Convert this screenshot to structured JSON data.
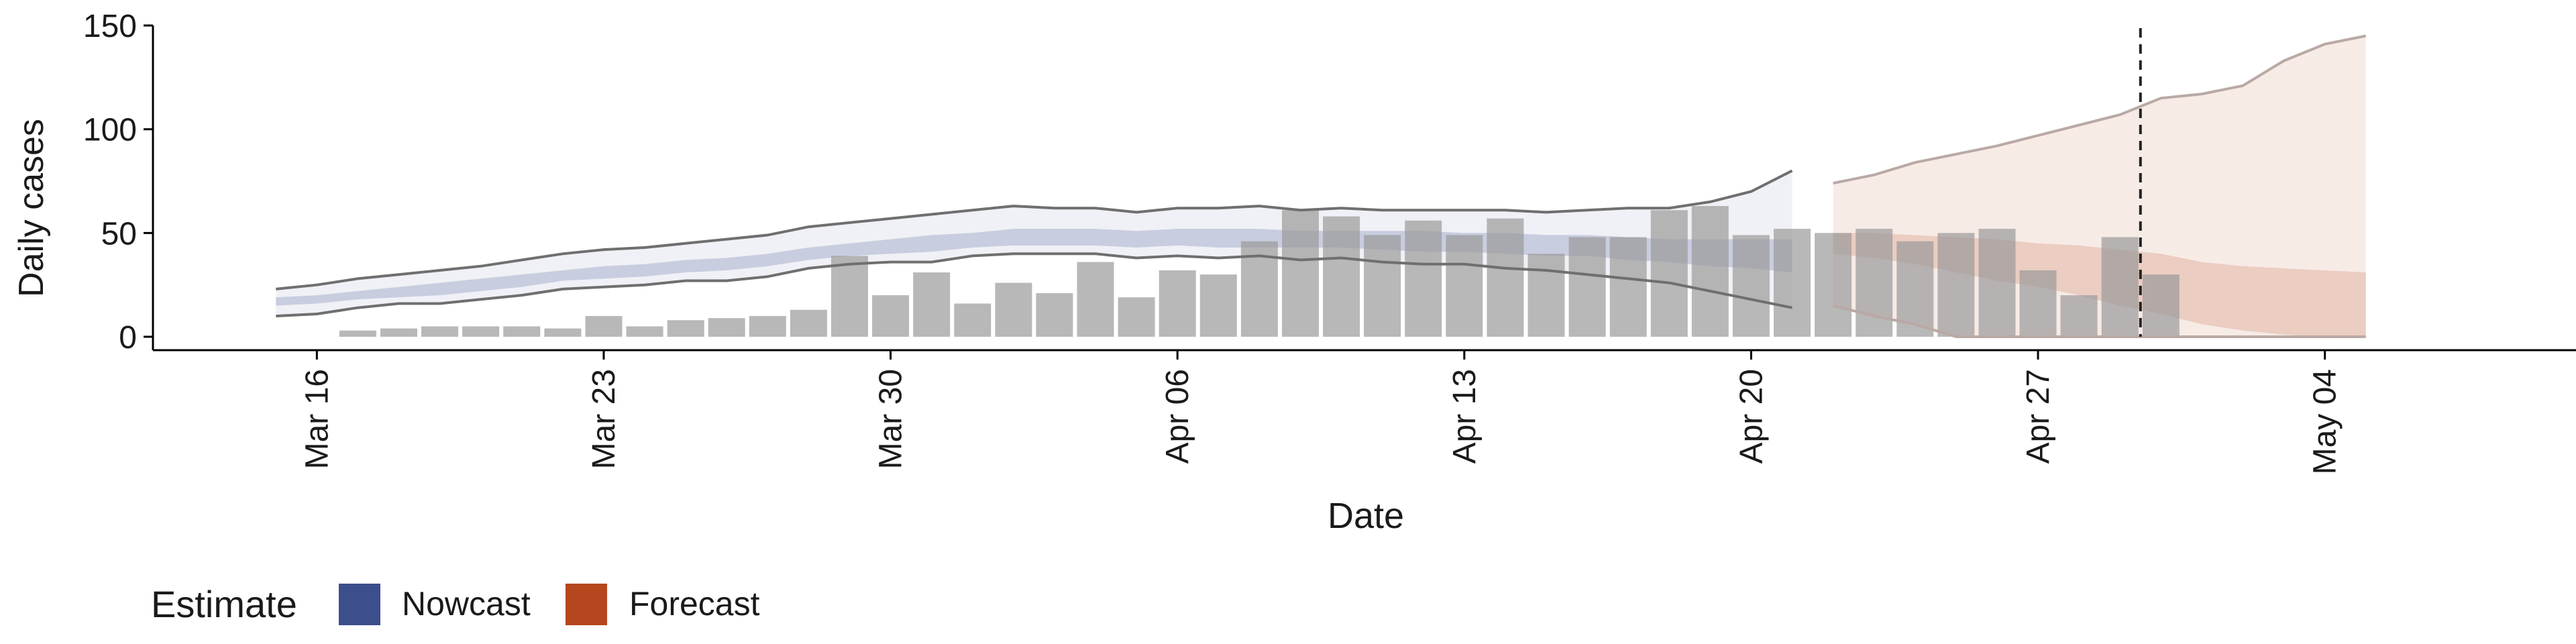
{
  "chart_data": {
    "type": "bar",
    "xlabel": "Date",
    "ylabel": "Daily cases",
    "ylim": [
      0,
      150
    ],
    "yticks": [
      0,
      50,
      100,
      150
    ],
    "xlim": [
      "2020-03-12",
      "2020-05-08"
    ],
    "xticks": [
      {
        "date": "2020-03-16",
        "label": "Mar 16"
      },
      {
        "date": "2020-03-23",
        "label": "Mar 23"
      },
      {
        "date": "2020-03-30",
        "label": "Mar 30"
      },
      {
        "date": "2020-04-06",
        "label": "Apr 06"
      },
      {
        "date": "2020-04-13",
        "label": "Apr 13"
      },
      {
        "date": "2020-04-20",
        "label": "Apr 20"
      },
      {
        "date": "2020-04-27",
        "label": "Apr 27"
      },
      {
        "date": "2020-05-04",
        "label": "May 04"
      }
    ],
    "bars": {
      "dates": [
        "2020-03-17",
        "2020-03-18",
        "2020-03-19",
        "2020-03-20",
        "2020-03-21",
        "2020-03-22",
        "2020-03-23",
        "2020-03-24",
        "2020-03-25",
        "2020-03-26",
        "2020-03-27",
        "2020-03-28",
        "2020-03-29",
        "2020-03-30",
        "2020-03-31",
        "2020-04-01",
        "2020-04-02",
        "2020-04-03",
        "2020-04-04",
        "2020-04-05",
        "2020-04-06",
        "2020-04-07",
        "2020-04-08",
        "2020-04-09",
        "2020-04-10",
        "2020-04-11",
        "2020-04-12",
        "2020-04-13",
        "2020-04-14",
        "2020-04-15",
        "2020-04-16",
        "2020-04-17",
        "2020-04-18",
        "2020-04-19",
        "2020-04-20",
        "2020-04-21",
        "2020-04-22",
        "2020-04-23",
        "2020-04-24",
        "2020-04-25",
        "2020-04-26",
        "2020-04-27",
        "2020-04-28",
        "2020-04-29",
        "2020-04-30"
      ],
      "values": [
        3,
        4,
        5,
        5,
        5,
        4,
        10,
        5,
        8,
        9,
        10,
        13,
        39,
        20,
        31,
        16,
        26,
        21,
        36,
        19,
        32,
        30,
        46,
        61,
        58,
        49,
        56,
        49,
        57,
        40,
        48,
        48,
        61,
        63,
        49,
        52,
        50,
        52,
        46,
        50,
        52,
        32,
        20,
        48,
        30
      ]
    },
    "vline_date": "2020-04-30",
    "series": [
      {
        "name": "Nowcast",
        "color": "#3C4F8C",
        "dates": [
          "2020-03-15",
          "2020-03-16",
          "2020-03-17",
          "2020-03-18",
          "2020-03-19",
          "2020-03-20",
          "2020-03-21",
          "2020-03-22",
          "2020-03-23",
          "2020-03-24",
          "2020-03-25",
          "2020-03-26",
          "2020-03-27",
          "2020-03-28",
          "2020-03-29",
          "2020-03-30",
          "2020-03-31",
          "2020-04-01",
          "2020-04-02",
          "2020-04-03",
          "2020-04-04",
          "2020-04-05",
          "2020-04-06",
          "2020-04-07",
          "2020-04-08",
          "2020-04-09",
          "2020-04-10",
          "2020-04-11",
          "2020-04-12",
          "2020-04-13",
          "2020-04-14",
          "2020-04-15",
          "2020-04-16",
          "2020-04-17",
          "2020-04-18",
          "2020-04-19",
          "2020-04-20",
          "2020-04-21"
        ],
        "upper90": [
          23,
          25,
          28,
          30,
          32,
          34,
          37,
          40,
          42,
          43,
          45,
          47,
          49,
          53,
          55,
          57,
          59,
          61,
          63,
          62,
          62,
          60,
          62,
          62,
          63,
          61,
          62,
          61,
          61,
          61,
          61,
          60,
          61,
          62,
          62,
          65,
          70,
          80
        ],
        "lower90": [
          10,
          11,
          14,
          16,
          16,
          18,
          20,
          23,
          24,
          25,
          27,
          27,
          29,
          33,
          35,
          36,
          36,
          39,
          40,
          40,
          40,
          38,
          39,
          38,
          39,
          37,
          38,
          36,
          35,
          35,
          33,
          32,
          30,
          28,
          26,
          22,
          18,
          14
        ],
        "upper50": [
          19,
          20,
          22,
          24,
          26,
          28,
          30,
          32,
          34,
          35,
          37,
          38,
          40,
          43,
          45,
          47,
          49,
          50,
          52,
          52,
          52,
          51,
          52,
          52,
          52,
          51,
          51,
          51,
          51,
          50,
          50,
          49,
          49,
          48,
          47,
          47,
          47,
          47
        ],
        "lower50": [
          15,
          16,
          18,
          19,
          20,
          22,
          24,
          27,
          28,
          29,
          31,
          32,
          34,
          37,
          39,
          40,
          41,
          43,
          44,
          44,
          44,
          43,
          44,
          43,
          43,
          43,
          43,
          42,
          41,
          41,
          40,
          39,
          39,
          37,
          36,
          34,
          33,
          31
        ]
      },
      {
        "name": "Forecast",
        "color": "#B5461E",
        "dates": [
          "2020-04-22",
          "2020-04-23",
          "2020-04-24",
          "2020-04-25",
          "2020-04-26",
          "2020-04-27",
          "2020-04-28",
          "2020-04-29",
          "2020-04-30",
          "2020-05-01",
          "2020-05-02",
          "2020-05-03",
          "2020-05-04",
          "2020-05-05"
        ],
        "upper90": [
          74,
          78,
          84,
          88,
          92,
          97,
          102,
          107,
          115,
          117,
          121,
          133,
          141,
          145
        ],
        "lower90": [
          15,
          10,
          6,
          0,
          0,
          0,
          0,
          0,
          0,
          0,
          0,
          0,
          0,
          0
        ],
        "upper50": [
          50,
          50,
          49,
          48,
          47,
          45,
          44,
          42,
          40,
          36,
          34,
          33,
          32,
          31
        ],
        "lower50": [
          40,
          38,
          35,
          31,
          27,
          24,
          20,
          15,
          11,
          6,
          3,
          1,
          0,
          0
        ]
      }
    ],
    "legend": {
      "title": "Estimate",
      "items": [
        {
          "label": "Nowcast",
          "color": "#3C4F8C"
        },
        {
          "label": "Forecast",
          "color": "#B5461E"
        }
      ],
      "placement": "bottom-left"
    },
    "grid": false
  }
}
